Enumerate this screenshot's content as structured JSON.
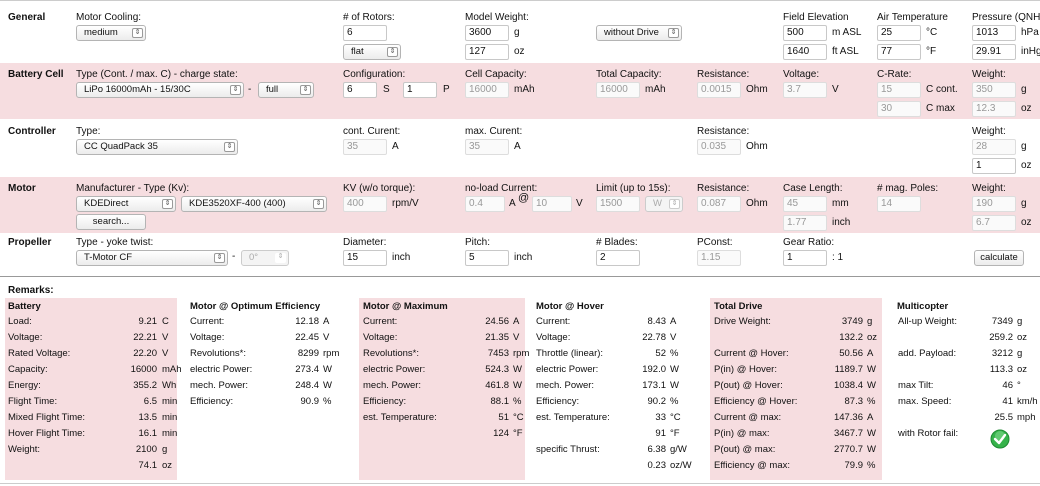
{
  "general": {
    "title": "General",
    "motor_cooling_label": "Motor Cooling:",
    "motor_cooling_value": "medium",
    "rotors_label": "# of Rotors:",
    "rotors_value": "6",
    "frame_value": "flat",
    "model_weight_label": "Model Weight:",
    "model_weight_g": "3600",
    "model_weight_g_unit": "g",
    "model_weight_oz": "127",
    "model_weight_oz_unit": "oz",
    "drive_value": "without Drive",
    "field_elev_label": "Field Elevation",
    "field_elev_m": "500",
    "field_elev_m_unit": "m ASL",
    "field_elev_ft": "1640",
    "field_elev_ft_unit": "ft ASL",
    "air_temp_label": "Air Temperature",
    "air_temp_c": "25",
    "air_temp_c_unit": "°C",
    "air_temp_f": "77",
    "air_temp_f_unit": "°F",
    "pressure_label": "Pressure (QNH",
    "pressure_hpa": "1013",
    "pressure_hpa_unit": "hPa",
    "pressure_inhg": "29.91",
    "pressure_inhg_unit": "inHg"
  },
  "battery": {
    "title": "Battery Cell",
    "type_label": "Type (Cont. / max. C) - charge state:",
    "type_value": "LiPo 16000mAh - 15/30C",
    "dash": "-",
    "charge_value": "full",
    "config_label": "Configuration:",
    "config_s": "6",
    "s_unit": "S",
    "config_p": "1",
    "p_unit": "P",
    "capacity_label": "Cell Capacity:",
    "capacity_value": "16000",
    "capacity_unit": "mAh",
    "total_cap_label": "Total Capacity:",
    "total_cap_value": "16000",
    "total_cap_unit": "mAh",
    "resistance_label": "Resistance:",
    "resistance_value": "0.0015",
    "resistance_unit": "Ohm",
    "voltage_label": "Voltage:",
    "voltage_value": "3.7",
    "voltage_unit": "V",
    "crate_label": "C-Rate:",
    "crate_cont": "15",
    "crate_cont_unit": "C cont.",
    "crate_max": "30",
    "crate_max_unit": "C max",
    "weight_label": "Weight:",
    "weight_g": "350",
    "weight_g_unit": "g",
    "weight_oz": "12.3",
    "weight_oz_unit": "oz"
  },
  "controller": {
    "title": "Controller",
    "type_label": "Type:",
    "type_value": "CC QuadPack 35",
    "cont_label": "cont. Curent:",
    "cont_value": "35",
    "cont_unit": "A",
    "max_label": "max. Curent:",
    "max_value": "35",
    "max_unit": "A",
    "resistance_label": "Resistance:",
    "resistance_value": "0.035",
    "resistance_unit": "Ohm",
    "weight_label": "Weight:",
    "weight_g": "28",
    "weight_g_unit": "g",
    "weight_oz": "1",
    "weight_oz_unit": "oz"
  },
  "motor": {
    "title": "Motor",
    "mfr_label": "Manufacturer - Type (Kv):",
    "mfr_value": "KDEDirect",
    "type_value": "KDE3520XF-400 (400)",
    "search_label": "search...",
    "kv_label": "KV (w/o torque):",
    "kv_value": "400",
    "kv_unit": "rpm/V",
    "noload_label": "no-load Current:",
    "noload_value": "0.4",
    "noload_unit": "A",
    "at": "@",
    "noload_v": "10",
    "noload_v_unit": "V",
    "limit_label": "Limit (up to 15s):",
    "limit_value": "1500",
    "limit_unit": "W",
    "resistance_label": "Resistance:",
    "resistance_value": "0.087",
    "resistance_unit": "Ohm",
    "case_label": "Case Length:",
    "case_mm": "45",
    "case_mm_unit": "mm",
    "case_inch": "1.77",
    "case_inch_unit": "inch",
    "poles_label": "# mag. Poles:",
    "poles_value": "14",
    "weight_label": "Weight:",
    "weight_g": "190",
    "weight_g_unit": "g",
    "weight_oz": "6.7",
    "weight_oz_unit": "oz"
  },
  "propeller": {
    "title": "Propeller",
    "type_label": "Type - yoke twist:",
    "type_value": "T-Motor CF",
    "dash": "-",
    "twist_value": "0°",
    "diameter_label": "Diameter:",
    "diameter_value": "15",
    "diameter_unit": "inch",
    "pitch_label": "Pitch:",
    "pitch_value": "5",
    "pitch_unit": "inch",
    "blades_label": "# Blades:",
    "blades_value": "2",
    "pconst_label": "PConst:",
    "pconst_value": "1.15",
    "gear_label": "Gear Ratio:",
    "gear_value": "1",
    "gear_unit": ": 1",
    "calculate_label": "calculate"
  },
  "remarks": {
    "title": "Remarks:"
  },
  "battery_res": {
    "title": "Battery",
    "rows": [
      [
        "Load:",
        "9.21",
        "C"
      ],
      [
        "Voltage:",
        "22.21",
        "V"
      ],
      [
        "Rated Voltage:",
        "22.20",
        "V"
      ],
      [
        "Capacity:",
        "16000",
        "mAh"
      ],
      [
        "Energy:",
        "355.2",
        "Wh"
      ],
      [
        "Flight Time:",
        "6.5",
        "min"
      ],
      [
        "Mixed Flight Time:",
        "13.5",
        "min"
      ],
      [
        "Hover Flight Time:",
        "16.1",
        "min"
      ],
      [
        "Weight:",
        "2100",
        "g"
      ],
      [
        "",
        "74.1",
        "oz"
      ]
    ]
  },
  "opt_res": {
    "title": "Motor @ Optimum Efficiency",
    "rows": [
      [
        "Current:",
        "12.18",
        "A"
      ],
      [
        "Voltage:",
        "22.45",
        "V"
      ],
      [
        "Revolutions*:",
        "8299",
        "rpm"
      ],
      [
        "electric Power:",
        "273.4",
        "W"
      ],
      [
        "mech. Power:",
        "248.4",
        "W"
      ],
      [
        "Efficiency:",
        "90.9",
        "%"
      ]
    ]
  },
  "max_res": {
    "title": "Motor @ Maximum",
    "rows": [
      [
        "Current:",
        "24.56",
        "A"
      ],
      [
        "Voltage:",
        "21.35",
        "V"
      ],
      [
        "Revolutions*:",
        "7453",
        "rpm"
      ],
      [
        "electric Power:",
        "524.3",
        "W"
      ],
      [
        "mech. Power:",
        "461.8",
        "W"
      ],
      [
        "Efficiency:",
        "88.1",
        "%"
      ],
      [
        "est. Temperature:",
        "51",
        "°C"
      ],
      [
        "",
        "124",
        "°F"
      ]
    ]
  },
  "hover_res": {
    "title": "Motor @ Hover",
    "rows": [
      [
        "Current:",
        "8.43",
        "A"
      ],
      [
        "Voltage:",
        "22.78",
        "V"
      ],
      [
        "Throttle (linear):",
        "52",
        "%"
      ],
      [
        "electric Power:",
        "192.0",
        "W"
      ],
      [
        "mech. Power:",
        "173.1",
        "W"
      ],
      [
        "Efficiency:",
        "90.2",
        "%"
      ],
      [
        "est. Temperature:",
        "33",
        "°C"
      ],
      [
        "",
        "91",
        "°F"
      ],
      [
        "specific Thrust:",
        "6.38",
        "g/W"
      ],
      [
        "",
        "0.23",
        "oz/W"
      ]
    ]
  },
  "drive_res": {
    "title": "Total Drive",
    "rows": [
      [
        "Drive Weight:",
        "3749",
        "g"
      ],
      [
        "",
        "132.2",
        "oz"
      ],
      [
        "Current @ Hover:",
        "50.56",
        "A"
      ],
      [
        "P(in) @ Hover:",
        "1189.7",
        "W"
      ],
      [
        "P(out) @ Hover:",
        "1038.4",
        "W"
      ],
      [
        "Efficiency @ Hover:",
        "87.3",
        "%"
      ],
      [
        "Current @ max:",
        "147.36",
        "A"
      ],
      [
        "P(in) @ max:",
        "3467.7",
        "W"
      ],
      [
        "P(out) @ max:",
        "2770.7",
        "W"
      ],
      [
        "Efficiency @ max:",
        "79.9",
        "%"
      ]
    ]
  },
  "multi_res": {
    "title": "Multicopter",
    "rows": [
      [
        "All-up Weight:",
        "7349",
        "g"
      ],
      [
        "",
        "259.2",
        "oz"
      ],
      [
        "add. Payload:",
        "3212",
        "g"
      ],
      [
        "",
        "113.3",
        "oz"
      ],
      [
        "max Tilt:",
        "46",
        "°"
      ],
      [
        "max. Speed:",
        "41",
        "km/h"
      ],
      [
        "",
        "25.5",
        "mph"
      ],
      [
        "with Rotor fail:",
        "",
        ""
      ]
    ]
  },
  "colors": {
    "pink": "#f6dde0",
    "ok_icon": "#35b24a"
  }
}
